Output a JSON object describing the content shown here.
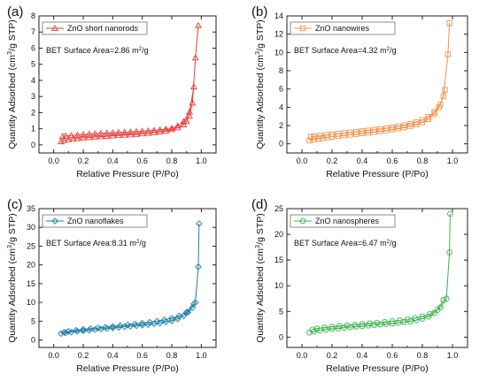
{
  "chart_data": [
    {
      "panel_label": "(a)",
      "type": "scatter",
      "series": [
        {
          "name": "ZnO short nanorods",
          "color": "#e8403c",
          "marker": "triangle",
          "adsorption": {
            "x": [
              0.05,
              0.07,
              0.1,
              0.13,
              0.16,
              0.2,
              0.24,
              0.28,
              0.32,
              0.36,
              0.4,
              0.44,
              0.48,
              0.52,
              0.56,
              0.6,
              0.64,
              0.68,
              0.72,
              0.76,
              0.8,
              0.84,
              0.88,
              0.9,
              0.92,
              0.94,
              0.96,
              0.98
            ],
            "y": [
              0.2,
              0.28,
              0.33,
              0.37,
              0.4,
              0.43,
              0.46,
              0.49,
              0.51,
              0.53,
              0.56,
              0.58,
              0.61,
              0.63,
              0.66,
              0.69,
              0.72,
              0.76,
              0.81,
              0.87,
              0.95,
              1.06,
              1.25,
              1.45,
              1.8,
              2.6,
              5.4,
              7.4
            ]
          },
          "desorption": {
            "x": [
              0.95,
              0.92,
              0.88,
              0.84,
              0.8,
              0.76,
              0.72,
              0.68,
              0.64,
              0.6,
              0.56,
              0.52,
              0.48,
              0.44,
              0.4,
              0.36,
              0.32,
              0.28,
              0.24,
              0.2,
              0.16,
              0.12,
              0.08,
              0.06
            ],
            "y": [
              3.6,
              2.05,
              1.45,
              1.18,
              1.03,
              0.97,
              0.93,
              0.9,
              0.87,
              0.85,
              0.83,
              0.81,
              0.79,
              0.77,
              0.75,
              0.73,
              0.71,
              0.69,
              0.67,
              0.64,
              0.61,
              0.58,
              0.55,
              0.53
            ]
          }
        }
      ],
      "xlabel": "Relative Pressure (P/Po)",
      "ylabel": "Quantity Adsorbed (cm³/g STP)",
      "xlim": [
        -0.1,
        1.1
      ],
      "ylim": [
        -0.5,
        8
      ],
      "xticks": [
        0.0,
        0.2,
        0.4,
        0.6,
        0.8,
        1.0
      ],
      "xtick_labels": [
        "0.0",
        "0.2",
        "0.4",
        "0.6",
        "0.8",
        "1.0"
      ],
      "yticks": [
        0,
        1,
        2,
        3,
        4,
        5,
        6,
        7,
        8
      ],
      "ytick_labels": [
        "0",
        "1",
        "2",
        "3",
        "4",
        "5",
        "6",
        "7",
        "8"
      ],
      "annotation": "BET Surface Area=2.86 m²/g",
      "legend_position": "top-left",
      "grid": false
    },
    {
      "panel_label": "(b)",
      "type": "scatter",
      "series": [
        {
          "name": "ZnO nanowires",
          "color": "#f0924a",
          "marker": "square",
          "adsorption": {
            "x": [
              0.05,
              0.08,
              0.11,
              0.14,
              0.17,
              0.2,
              0.24,
              0.28,
              0.32,
              0.36,
              0.4,
              0.44,
              0.48,
              0.52,
              0.56,
              0.6,
              0.64,
              0.68,
              0.72,
              0.76,
              0.8,
              0.84,
              0.88,
              0.91,
              0.94,
              0.97,
              0.98
            ],
            "y": [
              0.35,
              0.45,
              0.55,
              0.62,
              0.7,
              0.77,
              0.85,
              0.92,
              1.0,
              1.07,
              1.15,
              1.22,
              1.3,
              1.38,
              1.47,
              1.57,
              1.68,
              1.8,
              1.95,
              2.12,
              2.35,
              2.7,
              3.3,
              4.0,
              5.2,
              9.8,
              13.2
            ]
          },
          "desorption": {
            "x": [
              0.95,
              0.92,
              0.88,
              0.84,
              0.8,
              0.76,
              0.72,
              0.68,
              0.64,
              0.6,
              0.56,
              0.52,
              0.48,
              0.44,
              0.4,
              0.36,
              0.32,
              0.28,
              0.24,
              0.2,
              0.16,
              0.12,
              0.08,
              0.06
            ],
            "y": [
              5.9,
              4.3,
              3.5,
              2.95,
              2.6,
              2.35,
              2.17,
              2.02,
              1.9,
              1.79,
              1.7,
              1.61,
              1.53,
              1.45,
              1.38,
              1.31,
              1.24,
              1.17,
              1.1,
              1.03,
              0.96,
              0.89,
              0.82,
              0.77
            ]
          }
        }
      ],
      "xlabel": "Relative Pressure (P/Po)",
      "ylabel": "Quantity Adsorbed (cm³/g STP)",
      "xlim": [
        -0.1,
        1.1
      ],
      "ylim": [
        -1,
        14
      ],
      "xticks": [
        0.0,
        0.2,
        0.4,
        0.6,
        0.8,
        1.0
      ],
      "xtick_labels": [
        "0.0",
        "0.2",
        "0.4",
        "0.6",
        "0.8",
        "1.0"
      ],
      "yticks": [
        0,
        2,
        4,
        6,
        8,
        10,
        12,
        14
      ],
      "ytick_labels": [
        "0",
        "2",
        "4",
        "6",
        "8",
        "10",
        "12",
        "14"
      ],
      "annotation": "BET Surface Area=4.32 m²/g",
      "legend_position": "top-left",
      "grid": false
    },
    {
      "panel_label": "(c)",
      "type": "scatter",
      "series": [
        {
          "name": "ZnO nanoflakes",
          "color": "#1e7fa8",
          "marker": "diamond",
          "adsorption": {
            "x": [
              0.05,
              0.08,
              0.12,
              0.16,
              0.2,
              0.24,
              0.28,
              0.32,
              0.36,
              0.4,
              0.44,
              0.48,
              0.52,
              0.56,
              0.6,
              0.64,
              0.68,
              0.72,
              0.76,
              0.8,
              0.84,
              0.88,
              0.91,
              0.94,
              0.96,
              0.98,
              0.985
            ],
            "y": [
              1.7,
              1.9,
              2.1,
              2.3,
              2.45,
              2.6,
              2.75,
              2.9,
              3.05,
              3.2,
              3.35,
              3.5,
              3.65,
              3.8,
              3.95,
              4.1,
              4.3,
              4.5,
              4.8,
              5.1,
              5.6,
              6.4,
              7.4,
              8.6,
              10.0,
              19.5,
              31.0
            ]
          },
          "desorption": {
            "x": [
              0.95,
              0.9,
              0.85,
              0.8,
              0.75,
              0.7,
              0.65,
              0.6,
              0.55,
              0.5,
              0.45,
              0.4,
              0.35,
              0.3,
              0.25,
              0.2,
              0.15,
              0.1,
              0.07
            ],
            "y": [
              9.6,
              7.4,
              6.4,
              5.8,
              5.35,
              5.0,
              4.7,
              4.45,
              4.22,
              4.0,
              3.8,
              3.6,
              3.4,
              3.2,
              3.0,
              2.8,
              2.55,
              2.3,
              2.05
            ]
          }
        }
      ],
      "xlabel": "Relative Pressure (P/Po)",
      "ylabel": "Quantity Adsorbed (cm³/g STP)",
      "xlim": [
        -0.1,
        1.1
      ],
      "ylim": [
        -2,
        35
      ],
      "xticks": [
        0.0,
        0.2,
        0.4,
        0.6,
        0.8,
        1.0
      ],
      "xtick_labels": [
        "0.0",
        "0.2",
        "0.4",
        "0.6",
        "0.8",
        "1.0"
      ],
      "yticks": [
        0,
        5,
        10,
        15,
        20,
        25,
        30,
        35
      ],
      "ytick_labels": [
        "0",
        "5",
        "10",
        "15",
        "20",
        "25",
        "30",
        "35"
      ],
      "annotation": "BET Surface Area:8.31 m²/g",
      "legend_position": "top-left",
      "grid": false
    },
    {
      "panel_label": "(d)",
      "type": "scatter",
      "series": [
        {
          "name": "ZnO nanospheres",
          "color": "#3cb44a",
          "marker": "circle",
          "adsorption": {
            "x": [
              0.05,
              0.08,
              0.12,
              0.16,
              0.2,
              0.24,
              0.28,
              0.32,
              0.36,
              0.4,
              0.44,
              0.48,
              0.52,
              0.56,
              0.6,
              0.64,
              0.68,
              0.72,
              0.76,
              0.8,
              0.84,
              0.88,
              0.92,
              0.96,
              0.98,
              0.985
            ],
            "y": [
              0.9,
              1.1,
              1.3,
              1.45,
              1.6,
              1.72,
              1.85,
              1.95,
              2.05,
              2.15,
              2.25,
              2.35,
              2.45,
              2.55,
              2.65,
              2.78,
              2.92,
              3.08,
              3.3,
              3.6,
              4.0,
              4.7,
              5.8,
              7.5,
              16.5,
              24.0
            ]
          },
          "desorption": {
            "x": [
              0.94,
              0.9,
              0.85,
              0.8,
              0.75,
              0.7,
              0.65,
              0.6,
              0.55,
              0.5,
              0.45,
              0.4,
              0.35,
              0.3,
              0.25,
              0.2,
              0.15,
              0.1,
              0.07
            ],
            "y": [
              7.2,
              5.3,
              4.5,
              4.05,
              3.72,
              3.47,
              3.27,
              3.1,
              2.95,
              2.81,
              2.68,
              2.55,
              2.42,
              2.3,
              2.17,
              2.04,
              1.88,
              1.7,
              1.5
            ]
          }
        }
      ],
      "xlabel": "Relative Pressure (P/Po)",
      "ylabel": "Quantity Adsorbed (cm³/g STP)",
      "xlim": [
        -0.1,
        1.1
      ],
      "ylim": [
        -2,
        25
      ],
      "xticks": [
        0.0,
        0.2,
        0.4,
        0.6,
        0.8,
        1.0
      ],
      "xtick_labels": [
        "0.0",
        "0.2",
        "0.4",
        "0.6",
        "0.8",
        "1.0"
      ],
      "yticks": [
        0,
        5,
        10,
        15,
        20,
        25
      ],
      "ytick_labels": [
        "0",
        "5",
        "10",
        "15",
        "20",
        "25"
      ],
      "annotation": "BET Surface Area=6.47 m²/g",
      "legend_position": "top-left",
      "grid": false
    }
  ]
}
